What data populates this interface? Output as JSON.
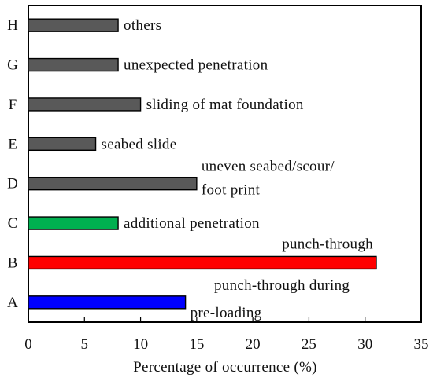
{
  "chart_data": {
    "type": "bar",
    "orientation": "horizontal",
    "xlabel": "Percentage of occurrence (%)",
    "xlim": [
      0,
      35
    ],
    "xticks": [
      0,
      5,
      10,
      15,
      20,
      25,
      30,
      35
    ],
    "grid": false,
    "categories": [
      "H",
      "G",
      "F",
      "E",
      "D",
      "C",
      "B",
      "A"
    ],
    "values": [
      8,
      8,
      10,
      6,
      15,
      8,
      31,
      14
    ],
    "bar_labels": [
      [
        "others"
      ],
      [
        "unexpected penetration"
      ],
      [
        "sliding of mat foundation"
      ],
      [
        "seabed slide"
      ],
      [
        "uneven seabed/scour/",
        "foot print"
      ],
      [
        "additional penetration"
      ],
      [
        "punch-through"
      ],
      [
        "punch-through during",
        "pre-loading"
      ]
    ],
    "colors": [
      "#595959",
      "#595959",
      "#595959",
      "#595959",
      "#595959",
      "#00b050",
      "#ff0000",
      "#0000ff"
    ]
  }
}
